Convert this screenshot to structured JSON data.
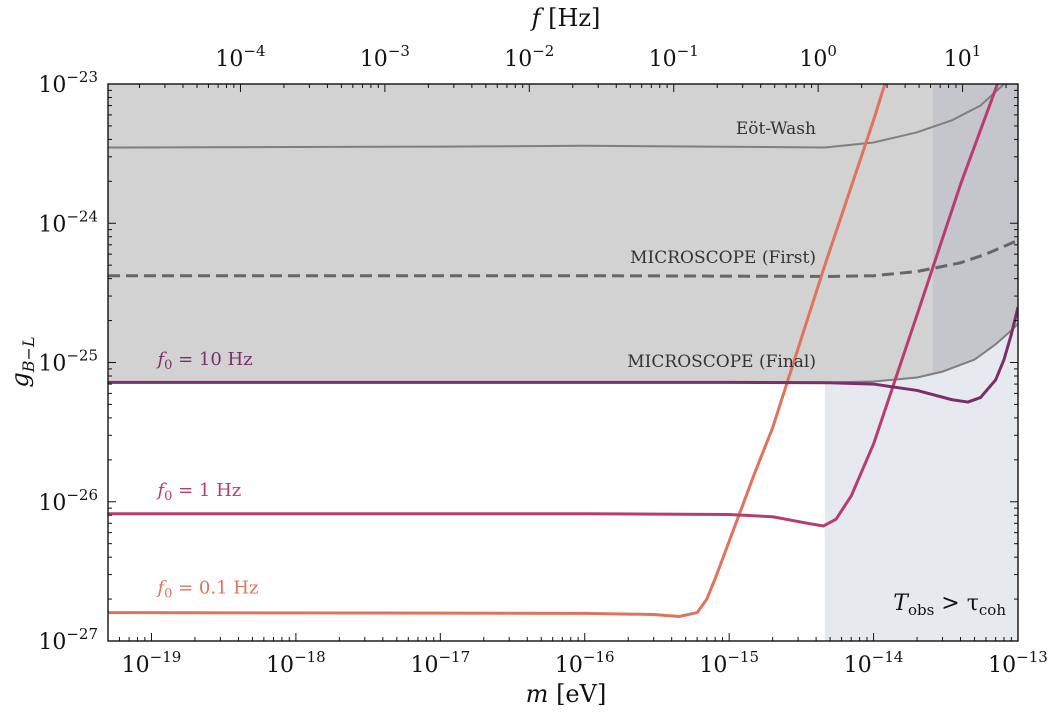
{
  "chart_data": {
    "type": "line",
    "title": "",
    "xlabel": "m [eV]",
    "ylabel": "g_{B-L}",
    "top_xlabel": "f [Hz]",
    "x_scale": "log",
    "y_scale": "log",
    "xlim": [
      5e-20,
      1e-13
    ],
    "ylim": [
      1e-27,
      1e-23
    ],
    "top_xlim_hz": [
      1.21e-05,
      24.2
    ],
    "grid": false,
    "x_ticks": [
      {
        "value": 1e-19,
        "base": "10",
        "exp": "−19"
      },
      {
        "value": 1e-18,
        "base": "10",
        "exp": "−18"
      },
      {
        "value": 1e-17,
        "base": "10",
        "exp": "−17"
      },
      {
        "value": 1e-16,
        "base": "10",
        "exp": "−16"
      },
      {
        "value": 1e-15,
        "base": "10",
        "exp": "−15"
      },
      {
        "value": 1e-14,
        "base": "10",
        "exp": "−14"
      },
      {
        "value": 1e-13,
        "base": "10",
        "exp": "−13"
      }
    ],
    "top_ticks": [
      {
        "value": 0.0001,
        "base": "10",
        "exp": "−4"
      },
      {
        "value": 0.001,
        "base": "10",
        "exp": "−3"
      },
      {
        "value": 0.01,
        "base": "10",
        "exp": "−2"
      },
      {
        "value": 0.1,
        "base": "10",
        "exp": "−1"
      },
      {
        "value": 1,
        "base": "10",
        "exp": "0"
      },
      {
        "value": 10,
        "base": "10",
        "exp": "1"
      }
    ],
    "y_ticks": [
      {
        "value": 1e-23,
        "base": "10",
        "exp": "−23"
      },
      {
        "value": 1e-24,
        "base": "10",
        "exp": "−24"
      },
      {
        "value": 1e-25,
        "base": "10",
        "exp": "−25"
      },
      {
        "value": 1e-26,
        "base": "10",
        "exp": "−26"
      },
      {
        "value": 1e-27,
        "base": "10",
        "exp": "−27"
      }
    ],
    "excluded_regions": [
      {
        "name": "Eöt-Wash",
        "color": "#7f7f7f",
        "dashed": false,
        "points": [
          [
            5e-20,
            3.5e-24
          ],
          [
            1e-17,
            3.55e-24
          ],
          [
            1e-16,
            3.6e-24
          ],
          [
            4.6e-15,
            3.5e-24
          ],
          [
            1e-14,
            3.8e-24
          ],
          [
            2e-14,
            4.5e-24
          ],
          [
            3.5e-14,
            5.5e-24
          ],
          [
            5.5e-14,
            7e-24
          ],
          [
            8e-14,
            1e-23
          ],
          [
            1e-13,
            1.1e-23
          ]
        ]
      },
      {
        "name": "MICROSCOPE (First)",
        "color": "#666666",
        "dashed": true,
        "points": [
          [
            5e-20,
            4.2e-25
          ],
          [
            1e-16,
            4.2e-25
          ],
          [
            5e-15,
            4.15e-25
          ],
          [
            1e-14,
            4.2e-25
          ],
          [
            2e-14,
            4.5e-25
          ],
          [
            4e-14,
            5.2e-25
          ],
          [
            6e-14,
            6e-25
          ],
          [
            9e-14,
            7.2e-25
          ],
          [
            1e-13,
            7.5e-25
          ]
        ]
      },
      {
        "name": "MICROSCOPE (Final)",
        "color": "#7f7f7f",
        "dashed": false,
        "points": [
          [
            5e-20,
            7.2e-26
          ],
          [
            5e-15,
            7.2e-26
          ],
          [
            1e-14,
            7.3e-26
          ],
          [
            2e-14,
            7.8e-26
          ],
          [
            3e-14,
            8.6e-26
          ],
          [
            5e-14,
            1.05e-25
          ],
          [
            7e-14,
            1.35e-25
          ],
          [
            9e-14,
            1.7e-25
          ],
          [
            1e-13,
            1.9e-25
          ]
        ]
      }
    ],
    "shaded_region": {
      "label_main": "T",
      "label_main_sub": "obs",
      "label_rel": " > τ",
      "label_rel_sub": "coh",
      "x_start": 4.6e-15,
      "color": "#e6e9ed"
    },
    "series": [
      {
        "name": "f₀ = 0.1 Hz",
        "color": "#e0735d",
        "points": [
          [
            5e-20,
            1.6e-27
          ],
          [
            1e-16,
            1.58e-27
          ],
          [
            3e-16,
            1.55e-27
          ],
          [
            4.5e-16,
            1.5e-27
          ],
          [
            6e-16,
            1.6e-27
          ],
          [
            7e-16,
            2e-27
          ],
          [
            8e-16,
            2.8e-27
          ],
          [
            1e-15,
            5.2e-27
          ],
          [
            1.5e-15,
            1.6e-26
          ],
          [
            2e-15,
            3.4e-26
          ],
          [
            4.6e-15,
            5e-25
          ],
          [
            1e-14,
            5.5e-24
          ],
          [
            2e-14,
            5.5e-23
          ]
        ]
      },
      {
        "name": "f₀ = 1 Hz",
        "color": "#b83d6e",
        "points": [
          [
            5e-20,
            8.2e-27
          ],
          [
            1e-16,
            8.2e-27
          ],
          [
            1e-15,
            8.1e-27
          ],
          [
            2e-15,
            7.8e-27
          ],
          [
            3.5e-15,
            7e-27
          ],
          [
            4.5e-15,
            6.7e-27
          ],
          [
            5.5e-15,
            7.5e-27
          ],
          [
            7e-15,
            1.1e-26
          ],
          [
            1e-14,
            2.6e-26
          ],
          [
            2e-14,
            2.2e-25
          ],
          [
            4e-14,
            1.9e-24
          ],
          [
            7e-14,
            9.2e-24
          ],
          [
            1e-13,
            2.8e-23
          ]
        ]
      },
      {
        "name": "f₀ = 10 Hz",
        "color": "#7a2f6b",
        "points": [
          [
            5e-20,
            7.2e-26
          ],
          [
            1e-15,
            7.2e-26
          ],
          [
            5e-15,
            7.15e-26
          ],
          [
            1e-14,
            7e-26
          ],
          [
            2e-14,
            6.3e-26
          ],
          [
            3.5e-14,
            5.4e-26
          ],
          [
            4.5e-14,
            5.2e-26
          ],
          [
            5.5e-14,
            5.6e-26
          ],
          [
            7e-14,
            7.5e-26
          ],
          [
            8e-14,
            1.05e-25
          ],
          [
            9e-14,
            1.6e-25
          ],
          [
            1e-13,
            2.5e-25
          ]
        ]
      }
    ],
    "series_labels": [
      {
        "main": "f",
        "sub": "0",
        "rest": " = 0.1 Hz",
        "color": "#e0735d",
        "x": 1.1e-19,
        "y": 2.2e-27
      },
      {
        "main": "f",
        "sub": "0",
        "rest": " = 1 Hz",
        "color": "#b83d6e",
        "x": 1.1e-19,
        "y": 1.1e-26
      },
      {
        "main": "f",
        "sub": "0",
        "rest": " = 10 Hz",
        "color": "#7a2f6b",
        "x": 1.1e-19,
        "y": 9.6e-26
      }
    ]
  }
}
